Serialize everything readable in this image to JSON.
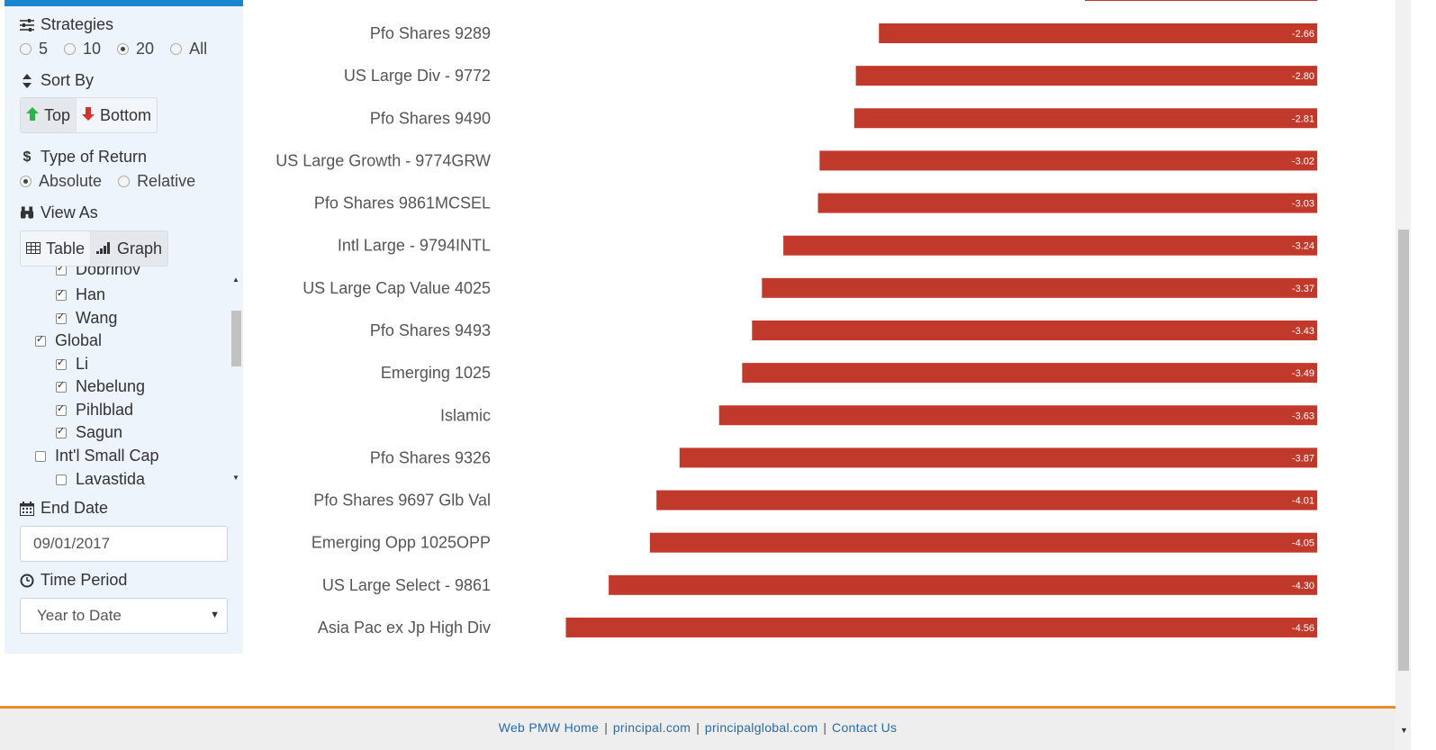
{
  "sidebar": {
    "strategies": {
      "title": "Strategies",
      "options": [
        {
          "label": "5",
          "checked": false
        },
        {
          "label": "10",
          "checked": false
        },
        {
          "label": "20",
          "checked": true
        },
        {
          "label": "All",
          "checked": false
        }
      ]
    },
    "sort_by": {
      "title": "Sort By",
      "top_label": "Top",
      "bottom_label": "Bottom",
      "active": "Top"
    },
    "return_type": {
      "title": "Type of Return",
      "options": [
        {
          "label": "Absolute",
          "checked": true
        },
        {
          "label": "Relative",
          "checked": false
        }
      ]
    },
    "view_as": {
      "title": "View As",
      "table_label": "Table",
      "graph_label": "Graph",
      "active": "Graph"
    },
    "tree": [
      {
        "label": "Dobrinov",
        "checked": true,
        "level": 2
      },
      {
        "label": "Han",
        "checked": true,
        "level": 2
      },
      {
        "label": "Wang",
        "checked": true,
        "level": 2
      },
      {
        "label": "Global",
        "checked": true,
        "level": 1
      },
      {
        "label": "Li",
        "checked": true,
        "level": 2
      },
      {
        "label": "Nebelung",
        "checked": true,
        "level": 2
      },
      {
        "label": "Pihlblad",
        "checked": true,
        "level": 2
      },
      {
        "label": "Sagun",
        "checked": true,
        "level": 2
      },
      {
        "label": "Int'l Small Cap",
        "checked": false,
        "level": 1
      },
      {
        "label": "Lavastida",
        "checked": false,
        "level": 2
      }
    ],
    "end_date": {
      "title": "End Date",
      "value": "09/01/2017"
    },
    "time_period": {
      "title": "Time Period",
      "value": "Year to Date"
    }
  },
  "colors": {
    "bar": "#c0392b",
    "accent": "#1a86d0",
    "footer_line": "#f08a24",
    "sidebar_bg": "#edf4fb",
    "up_arrow": "#2db34a",
    "down_arrow": "#d0342c"
  },
  "icons": {
    "strategies": "sliders-icon",
    "sort_by": "sort-icon",
    "top": "arrow-up-icon",
    "bottom": "arrow-down-icon",
    "return_type": "dollar-icon",
    "view_as": "binoculars-icon",
    "table": "table-icon",
    "graph": "bar-chart-icon",
    "end_date": "calendar-icon",
    "time_period": "clock-icon"
  },
  "chart_data": {
    "type": "bar",
    "orientation": "horizontal",
    "categories": [
      "Pfo Shares 9289",
      "US Large Div - 9772",
      "Pfo Shares 9490",
      "US Large Growth - 9774GRW",
      "Pfo Shares 9861MCSEL",
      "Intl Large - 9794INTL",
      "US Large Cap Value 4025",
      "Pfo Shares 9493",
      "Emerging 1025",
      "Islamic",
      "Pfo Shares 9326",
      "Pfo Shares 9697 Glb Val",
      "Emerging Opp 1025OPP",
      "US Large Select - 9861",
      "Asia Pac ex Jp High Div"
    ],
    "values": [
      -2.66,
      -2.8,
      -2.81,
      -3.02,
      -3.03,
      -3.24,
      -3.37,
      -3.43,
      -3.49,
      -3.63,
      -3.87,
      -4.01,
      -4.05,
      -4.3,
      -4.56
    ],
    "labels": [
      "-2.66",
      "-2.80",
      "-2.81",
      "-3.02",
      "-3.03",
      "-3.24",
      "-3.37",
      "-3.43",
      "-3.49",
      "-3.63",
      "-3.87",
      "-4.01",
      "-4.05",
      "-4.30",
      "-4.56"
    ],
    "title": "",
    "xlabel": "",
    "ylabel": "",
    "grid": false
  },
  "footer": {
    "links": [
      "Web PMW Home",
      "principal.com",
      "principalglobal.com",
      "Contact Us"
    ],
    "separator": "|"
  }
}
